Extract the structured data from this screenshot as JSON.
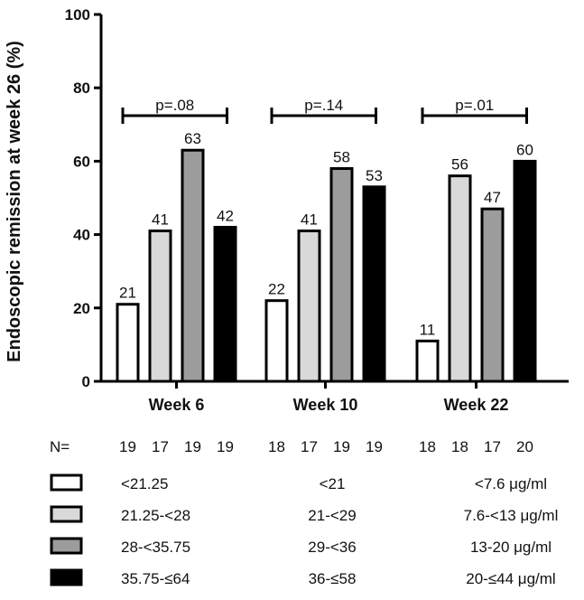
{
  "chart_data": {
    "type": "bar",
    "ylabel": "Endoscopic remission at week 26 (%)",
    "ylim": [
      0,
      100
    ],
    "yticks": [
      "0",
      "20",
      "40",
      "60",
      "80",
      "100"
    ],
    "categories": [
      "Week 6",
      "Week 10",
      "Week 22"
    ],
    "series_colors": [
      "#ffffff",
      "#d9d9d9",
      "#9c9c9c",
      "#000000"
    ],
    "groups": [
      {
        "category": "Week 6",
        "values": [
          21,
          41,
          63,
          42
        ],
        "labels": [
          "21",
          "41",
          "63",
          "42"
        ],
        "n": [
          "19",
          "17",
          "19",
          "19"
        ],
        "p": "p=.08"
      },
      {
        "category": "Week 10",
        "values": [
          22,
          41,
          58,
          53
        ],
        "labels": [
          "22",
          "41",
          "58",
          "53"
        ],
        "n": [
          "18",
          "17",
          "19",
          "19"
        ],
        "p": "p=.14"
      },
      {
        "category": "Week 22",
        "values": [
          11,
          56,
          47,
          60
        ],
        "labels": [
          "11",
          "56",
          "47",
          "60"
        ],
        "n": [
          "18",
          "18",
          "17",
          "20"
        ],
        "p": "p=.01"
      }
    ],
    "n_label": "N=",
    "legend": [
      {
        "col1": "<21.25",
        "col2": "<21",
        "col3": "<7.6 μg/ml"
      },
      {
        "col1": "21.25-<28",
        "col2": "21-<29",
        "col3": "7.6-<13 μg/ml"
      },
      {
        "col1": "28-<35.75",
        "col2": "29-<36",
        "col3": "13-20 μg/ml"
      },
      {
        "col1": "35.75-≤64",
        "col2": "36-≤58",
        "col3": "20-≤44 μg/ml"
      }
    ]
  }
}
